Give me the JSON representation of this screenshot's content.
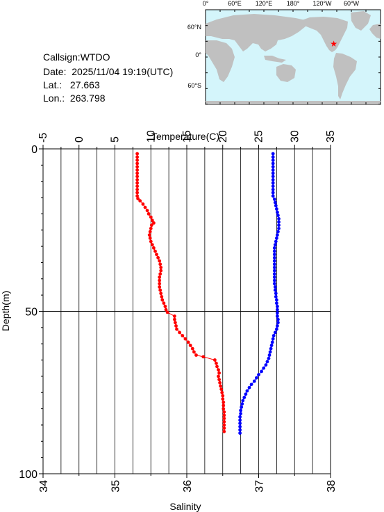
{
  "info": {
    "callsign_label": "Callsign:",
    "callsign": "WTDO",
    "date_label": "Date:",
    "date": "2025/11/04 19:19(UTC)",
    "lat_label": "Lat.:",
    "lat": "27.663",
    "lon_label": "Lon.:",
    "lon": "263.798"
  },
  "map": {
    "top_ticks": [
      "0°",
      "60°E",
      "120°E",
      "180°",
      "120°W",
      "60°W"
    ],
    "left_ticks": [
      "60°N",
      "0°",
      "60°S"
    ],
    "ocean_color": "#d4f5fb",
    "land_color": "#c0c0c0",
    "marker_color": "#ff0000",
    "marker_lon": 263.798,
    "marker_lat": 27.663
  },
  "chart_data": {
    "type": "scatter",
    "temperature_axis": {
      "label": "Temperature(C)",
      "range": [
        -5,
        35
      ],
      "ticks": [
        "-5",
        "0",
        "5",
        "10",
        "15",
        "20",
        "25",
        "30",
        "35"
      ]
    },
    "salinity_axis": {
      "label": "Salinity",
      "range": [
        34,
        38
      ],
      "ticks": [
        "34",
        "35",
        "36",
        "37",
        "38"
      ]
    },
    "depth_axis": {
      "label": "Depth(m)",
      "range": [
        0,
        100
      ],
      "ticks": [
        "0",
        "50",
        "100"
      ]
    },
    "grid": true,
    "series": [
      {
        "color": "#ff0000",
        "axis": "temperature",
        "points": [
          [
            8.1,
            1.5
          ],
          [
            8.1,
            2.5
          ],
          [
            8.1,
            3.5
          ],
          [
            8.1,
            4.5
          ],
          [
            8.1,
            5.5
          ],
          [
            8.1,
            6.5
          ],
          [
            8.1,
            7.5
          ],
          [
            8.1,
            8.5
          ],
          [
            8.1,
            9.5
          ],
          [
            8.1,
            10.5
          ],
          [
            8.1,
            11.5
          ],
          [
            8.1,
            12.5
          ],
          [
            8.1,
            13.5
          ],
          [
            8.1,
            14.5
          ],
          [
            8.2,
            15.3
          ],
          [
            8.5,
            16.0
          ],
          [
            8.9,
            17.0
          ],
          [
            9.2,
            18.0
          ],
          [
            9.5,
            19.0
          ],
          [
            9.7,
            20.0
          ],
          [
            10.0,
            21.0
          ],
          [
            10.2,
            22.0
          ],
          [
            10.4,
            22.8
          ],
          [
            10.1,
            23.5
          ],
          [
            10.0,
            24.5
          ],
          [
            9.9,
            25.5
          ],
          [
            9.8,
            26.5
          ],
          [
            9.9,
            27.5
          ],
          [
            10.0,
            28.5
          ],
          [
            10.2,
            29.5
          ],
          [
            10.4,
            30.5
          ],
          [
            10.6,
            31.5
          ],
          [
            10.8,
            32.5
          ],
          [
            11.0,
            33.5
          ],
          [
            11.2,
            34.5
          ],
          [
            11.3,
            35.5
          ],
          [
            11.4,
            36.5
          ],
          [
            11.4,
            37.5
          ],
          [
            11.3,
            38.5
          ],
          [
            11.2,
            39.5
          ],
          [
            11.2,
            40.5
          ],
          [
            11.2,
            41.5
          ],
          [
            11.2,
            42.5
          ],
          [
            11.3,
            43.5
          ],
          [
            11.4,
            44.5
          ],
          [
            11.5,
            45.5
          ],
          [
            11.6,
            46.5
          ],
          [
            11.8,
            47.5
          ],
          [
            12.0,
            48.5
          ],
          [
            12.1,
            49.5
          ],
          [
            12.3,
            50.3
          ],
          [
            13.3,
            51.5
          ],
          [
            13.3,
            52.5
          ],
          [
            13.4,
            53.5
          ],
          [
            13.5,
            54.5
          ],
          [
            13.6,
            55.5
          ],
          [
            14.0,
            56.5
          ],
          [
            14.4,
            57.5
          ],
          [
            14.8,
            58.5
          ],
          [
            15.2,
            59.5
          ],
          [
            15.5,
            60.5
          ],
          [
            15.8,
            61.5
          ],
          [
            16.0,
            62.5
          ],
          [
            16.3,
            63.5
          ],
          [
            17.3,
            64.0
          ],
          [
            18.9,
            65.0
          ],
          [
            19.1,
            66.0
          ],
          [
            19.2,
            67.0
          ],
          [
            19.4,
            68.0
          ],
          [
            19.5,
            69.0
          ],
          [
            19.4,
            70.0
          ],
          [
            19.5,
            71.0
          ],
          [
            19.6,
            72.0
          ],
          [
            19.7,
            73.0
          ],
          [
            19.8,
            74.0
          ],
          [
            19.9,
            75.0
          ],
          [
            20.0,
            76.0
          ],
          [
            20.0,
            77.0
          ],
          [
            20.1,
            78.0
          ],
          [
            20.1,
            79.0
          ],
          [
            20.1,
            80.0
          ],
          [
            20.2,
            81.0
          ],
          [
            20.2,
            82.0
          ],
          [
            20.2,
            83.0
          ],
          [
            20.2,
            84.0
          ],
          [
            20.2,
            85.0
          ],
          [
            20.2,
            86.0
          ],
          [
            20.2,
            87.0
          ]
        ]
      },
      {
        "color": "#0000ff",
        "axis": "salinity",
        "points": [
          [
            37.2,
            1.5
          ],
          [
            37.2,
            2.5
          ],
          [
            37.2,
            3.5
          ],
          [
            37.2,
            4.5
          ],
          [
            37.2,
            5.5
          ],
          [
            37.2,
            6.5
          ],
          [
            37.2,
            7.5
          ],
          [
            37.2,
            8.5
          ],
          [
            37.2,
            9.5
          ],
          [
            37.2,
            10.5
          ],
          [
            37.2,
            11.5
          ],
          [
            37.2,
            12.5
          ],
          [
            37.2,
            13.5
          ],
          [
            37.2,
            14.5
          ],
          [
            37.22,
            15.5
          ],
          [
            37.23,
            16.5
          ],
          [
            37.24,
            17.5
          ],
          [
            37.25,
            18.5
          ],
          [
            37.26,
            19.5
          ],
          [
            37.27,
            20.5
          ],
          [
            37.28,
            21.5
          ],
          [
            37.28,
            22.5
          ],
          [
            37.28,
            23.5
          ],
          [
            37.28,
            24.5
          ],
          [
            37.27,
            25.5
          ],
          [
            37.26,
            26.5
          ],
          [
            37.25,
            27.5
          ],
          [
            37.24,
            28.5
          ],
          [
            37.23,
            29.5
          ],
          [
            37.22,
            30.5
          ],
          [
            37.22,
            31.5
          ],
          [
            37.22,
            32.5
          ],
          [
            37.22,
            33.5
          ],
          [
            37.22,
            34.5
          ],
          [
            37.22,
            35.5
          ],
          [
            37.22,
            36.5
          ],
          [
            37.22,
            37.5
          ],
          [
            37.22,
            38.5
          ],
          [
            37.22,
            39.5
          ],
          [
            37.22,
            40.5
          ],
          [
            37.22,
            41.5
          ],
          [
            37.23,
            42.5
          ],
          [
            37.23,
            43.5
          ],
          [
            37.24,
            44.5
          ],
          [
            37.24,
            45.5
          ],
          [
            37.25,
            46.5
          ],
          [
            37.25,
            47.5
          ],
          [
            37.26,
            48.5
          ],
          [
            37.26,
            49.5
          ],
          [
            37.26,
            50.5
          ],
          [
            37.26,
            51.5
          ],
          [
            37.27,
            52.5
          ],
          [
            37.27,
            53.5
          ],
          [
            37.26,
            54.5
          ],
          [
            37.25,
            55.5
          ],
          [
            37.23,
            56.5
          ],
          [
            37.21,
            57.5
          ],
          [
            37.2,
            58.5
          ],
          [
            37.19,
            59.5
          ],
          [
            37.18,
            60.5
          ],
          [
            37.17,
            61.5
          ],
          [
            37.16,
            62.5
          ],
          [
            37.15,
            63.5
          ],
          [
            37.14,
            64.5
          ],
          [
            37.12,
            65.5
          ],
          [
            37.1,
            66.5
          ],
          [
            37.07,
            67.5
          ],
          [
            37.04,
            68.5
          ],
          [
            37.0,
            69.5
          ],
          [
            36.97,
            70.5
          ],
          [
            36.94,
            71.5
          ],
          [
            36.9,
            72.5
          ],
          [
            36.87,
            73.5
          ],
          [
            36.84,
            74.5
          ],
          [
            36.82,
            75.5
          ],
          [
            36.8,
            76.5
          ],
          [
            36.78,
            77.5
          ],
          [
            36.77,
            78.5
          ],
          [
            36.76,
            79.5
          ],
          [
            36.75,
            80.5
          ],
          [
            36.75,
            81.5
          ],
          [
            36.74,
            82.5
          ],
          [
            36.74,
            83.5
          ],
          [
            36.74,
            84.5
          ],
          [
            36.74,
            85.5
          ],
          [
            36.74,
            86.5
          ],
          [
            36.74,
            87.5
          ]
        ]
      }
    ]
  }
}
